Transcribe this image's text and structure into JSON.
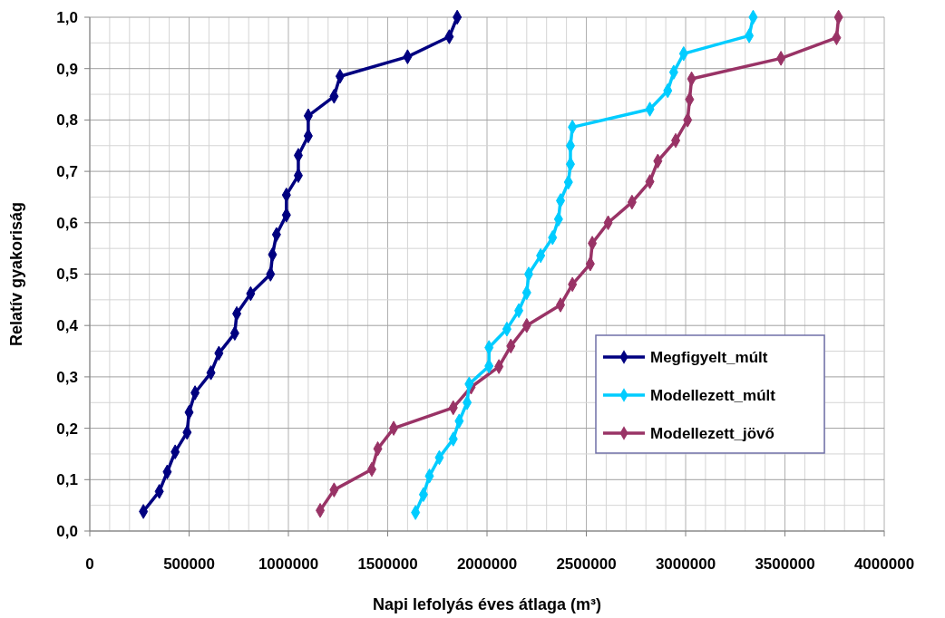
{
  "chart_data": {
    "type": "line",
    "xlabel": "Napi lefolyás éves átlaga (m³)",
    "ylabel": "Relatív gyakoriság",
    "xlim": [
      0,
      4000000
    ],
    "xticks": [
      0,
      {
        "value": 100000,
        "label": null
      },
      {
        "value": 200000,
        "label": null
      },
      {
        "value": 300000,
        "label": null
      },
      {
        "value": 400000,
        "label": null
      },
      500000,
      {
        "value": 600000,
        "label": null
      },
      {
        "value": 700000,
        "label": null
      },
      {
        "value": 800000,
        "label": null
      },
      {
        "value": 900000,
        "label": null
      },
      1000000,
      {
        "value": 1100000,
        "label": null
      },
      {
        "value": 1200000,
        "label": null
      },
      {
        "value": 1300000,
        "label": null
      },
      {
        "value": 1400000,
        "label": null
      },
      1500000,
      {
        "value": 1600000,
        "label": null
      },
      {
        "value": 1700000,
        "label": null
      },
      {
        "value": 1800000,
        "label": null
      },
      {
        "value": 1900000,
        "label": null
      },
      2000000,
      {
        "value": 2100000,
        "label": null
      },
      {
        "value": 2200000,
        "label": null
      },
      {
        "value": 2300000,
        "label": null
      },
      {
        "value": 2400000,
        "label": null
      },
      2500000,
      {
        "value": 2600000,
        "label": null
      },
      {
        "value": 2700000,
        "label": null
      },
      {
        "value": 2800000,
        "label": null
      },
      {
        "value": 2900000,
        "label": null
      },
      3000000,
      {
        "value": 3100000,
        "label": null
      },
      {
        "value": 3200000,
        "label": null
      },
      {
        "value": 3300000,
        "label": null
      },
      {
        "value": 3400000,
        "label": null
      },
      3500000,
      {
        "value": 3600000,
        "label": null
      },
      {
        "value": 3700000,
        "label": null
      },
      {
        "value": 3800000,
        "label": null
      },
      {
        "value": 3900000,
        "label": null
      },
      4000000
    ],
    "ylim": [
      0,
      1
    ],
    "yticks": [
      {
        "value": 0,
        "label": "0,0"
      },
      {
        "value": 0.05,
        "label": null
      },
      {
        "value": 0.1,
        "label": "0,1"
      },
      {
        "value": 0.15,
        "label": null
      },
      {
        "value": 0.2,
        "label": "0,2"
      },
      {
        "value": 0.25,
        "label": null
      },
      {
        "value": 0.3,
        "label": "0,3"
      },
      {
        "value": 0.35,
        "label": null
      },
      {
        "value": 0.4,
        "label": "0,4"
      },
      {
        "value": 0.45,
        "label": null
      },
      {
        "value": 0.5,
        "label": "0,5"
      },
      {
        "value": 0.55,
        "label": null
      },
      {
        "value": 0.6,
        "label": "0,6"
      },
      {
        "value": 0.65,
        "label": null
      },
      {
        "value": 0.7,
        "label": "0,7"
      },
      {
        "value": 0.75,
        "label": null
      },
      {
        "value": 0.8,
        "label": "0,8"
      },
      {
        "value": 0.85,
        "label": null
      },
      {
        "value": 0.9,
        "label": "0,9"
      },
      {
        "value": 0.95,
        "label": null
      },
      {
        "value": 1,
        "label": "1,0"
      }
    ],
    "grid": true,
    "legend": "bottom right",
    "marker": "diamond",
    "line_style": "solid",
    "series": [
      {
        "name": "Megfigyelt_múlt",
        "color": "#000080",
        "x": [
          270000,
          350000,
          390000,
          430000,
          490000,
          500000,
          530000,
          610000,
          650000,
          730000,
          740000,
          810000,
          910000,
          920000,
          940000,
          990000,
          990000,
          1050000,
          1050000,
          1100000,
          1100000,
          1230000,
          1260000,
          1600000,
          1810000,
          1850000
        ],
        "values": [
          0.038,
          0.077,
          0.115,
          0.154,
          0.192,
          0.231,
          0.269,
          0.308,
          0.346,
          0.385,
          0.423,
          0.462,
          0.5,
          0.538,
          0.577,
          0.615,
          0.654,
          0.692,
          0.731,
          0.769,
          0.808,
          0.846,
          0.885,
          0.923,
          0.962,
          1
        ]
      },
      {
        "name": "Modellezett_múlt",
        "color": "#00ccff",
        "x": [
          1640000,
          1680000,
          1710000,
          1760000,
          1830000,
          1860000,
          1900000,
          1910000,
          2010000,
          2010000,
          2100000,
          2160000,
          2200000,
          2210000,
          2270000,
          2330000,
          2360000,
          2370000,
          2410000,
          2420000,
          2420000,
          2430000,
          2820000,
          2910000,
          2940000,
          2990000,
          3320000,
          3340000
        ],
        "values": [
          0.036,
          0.071,
          0.107,
          0.143,
          0.179,
          0.214,
          0.25,
          0.286,
          0.321,
          0.357,
          0.393,
          0.429,
          0.464,
          0.5,
          0.536,
          0.571,
          0.607,
          0.643,
          0.679,
          0.714,
          0.75,
          0.786,
          0.821,
          0.857,
          0.893,
          0.929,
          0.964,
          1
        ]
      },
      {
        "name": "Modellezett_jövő",
        "color": "#993366",
        "x": [
          1160000,
          1230000,
          1420000,
          1450000,
          1530000,
          1830000,
          1920000,
          2060000,
          2120000,
          2200000,
          2370000,
          2430000,
          2520000,
          2530000,
          2610000,
          2730000,
          2820000,
          2860000,
          2950000,
          3010000,
          3020000,
          3030000,
          3480000,
          3760000,
          3770000
        ],
        "values": [
          0.04,
          0.08,
          0.12,
          0.16,
          0.2,
          0.24,
          0.28,
          0.32,
          0.36,
          0.4,
          0.44,
          0.48,
          0.52,
          0.56,
          0.6,
          0.64,
          0.68,
          0.72,
          0.76,
          0.8,
          0.84,
          0.88,
          0.92,
          0.96,
          1
        ]
      }
    ]
  }
}
